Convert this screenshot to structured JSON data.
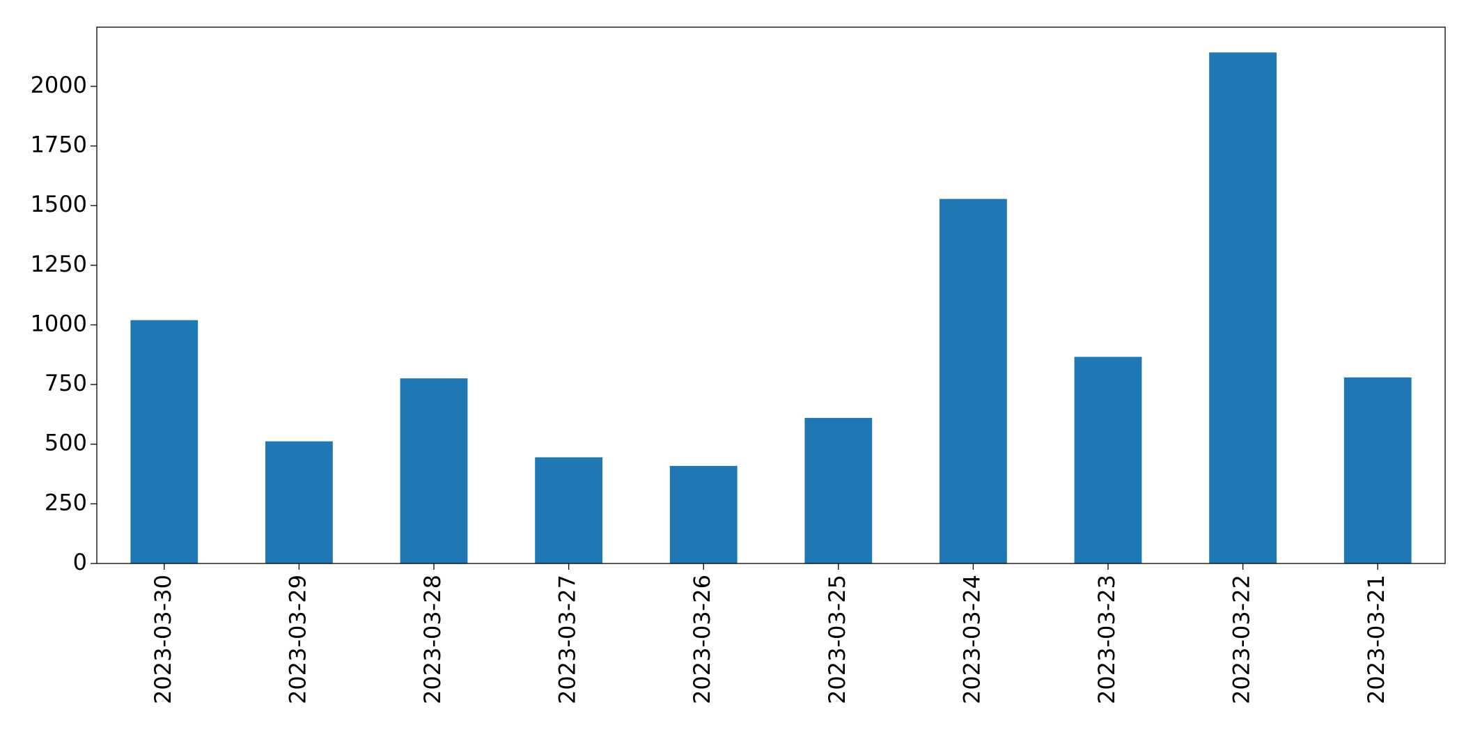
{
  "chart_data": {
    "type": "bar",
    "categories": [
      "2023-03-30",
      "2023-03-29",
      "2023-03-28",
      "2023-03-27",
      "2023-03-26",
      "2023-03-25",
      "2023-03-24",
      "2023-03-23",
      "2023-03-22",
      "2023-03-21"
    ],
    "values": [
      1020,
      512,
      776,
      445,
      409,
      610,
      1528,
      866,
      2142,
      780
    ],
    "color": "#1f77b4",
    "ylim": [
      0,
      2248
    ],
    "yticks": [
      0,
      250,
      500,
      750,
      1000,
      1250,
      1500,
      1750,
      2000
    ],
    "grid": false
  }
}
